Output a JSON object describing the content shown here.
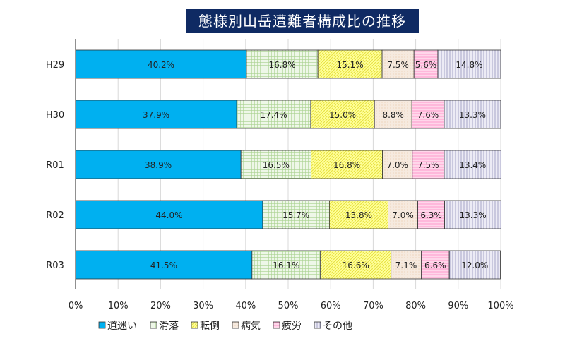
{
  "chart_data": {
    "type": "bar",
    "orientation": "horizontal",
    "stacked": "100%",
    "title": "態様別山岳遭難者構成比の推移",
    "categories": [
      "H29",
      "H30",
      "R01",
      "R02",
      "R03"
    ],
    "series": [
      {
        "name": "道迷い",
        "values": [
          40.2,
          37.9,
          38.9,
          44.0,
          41.5
        ],
        "color": "#00b0f0",
        "pattern": "solid"
      },
      {
        "name": "滑落",
        "values": [
          16.8,
          17.4,
          16.5,
          15.7,
          16.1
        ],
        "color": "#a9d18e",
        "pattern": "grid"
      },
      {
        "name": "転倒",
        "values": [
          15.1,
          15.0,
          16.8,
          13.8,
          16.6
        ],
        "color": "#ffff66",
        "pattern": "diagonal"
      },
      {
        "name": "病気",
        "values": [
          7.5,
          8.8,
          7.0,
          7.0,
          7.1
        ],
        "color": "#e8c8a8",
        "pattern": "dots"
      },
      {
        "name": "疲労",
        "values": [
          5.6,
          7.6,
          7.5,
          6.3,
          6.6
        ],
        "color": "#ff99cc",
        "pattern": "horizontal"
      },
      {
        "name": "その他",
        "values": [
          14.8,
          13.3,
          13.4,
          13.3,
          12.0
        ],
        "color": "#a6a6c8",
        "pattern": "vertical"
      }
    ],
    "xlim": [
      0,
      100
    ],
    "x_ticks": [
      "0%",
      "10%",
      "20%",
      "30%",
      "40%",
      "50%",
      "60%",
      "70%",
      "80%",
      "90%",
      "100%"
    ],
    "grid": true,
    "legend": "bottom"
  }
}
